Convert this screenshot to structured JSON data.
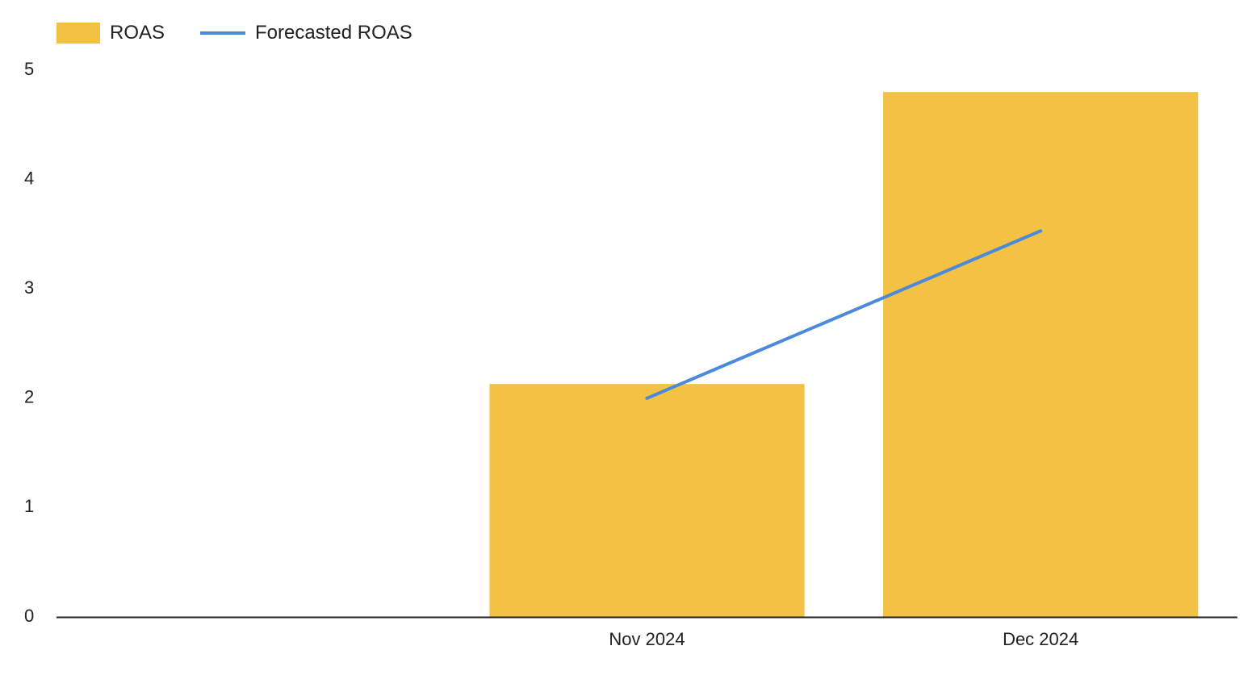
{
  "legend": {
    "bar_label": "ROAS",
    "line_label": "Forecasted ROAS"
  },
  "colors": {
    "bar": "#F3C143",
    "line": "#4A89DC",
    "axis": "#222222"
  },
  "chart_data": {
    "type": "bar",
    "title": "",
    "xlabel": "",
    "ylabel": "",
    "categories": [
      "",
      "Nov 2024",
      "Dec 2024"
    ],
    "series": [
      {
        "name": "ROAS",
        "type": "bar",
        "values": [
          null,
          2.13,
          4.8
        ]
      },
      {
        "name": "Forecasted ROAS",
        "type": "line",
        "values": [
          null,
          2.0,
          3.53
        ]
      }
    ],
    "yticks": [
      0,
      1,
      2,
      3,
      4,
      5
    ],
    "ylim": [
      0,
      5
    ],
    "grid": false,
    "legend_position": "top-left"
  }
}
